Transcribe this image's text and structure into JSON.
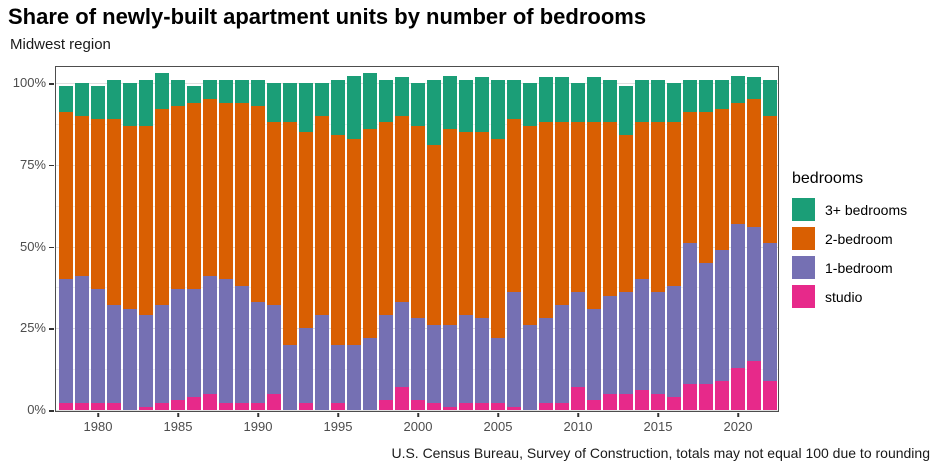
{
  "title": "Share of newly-built apartment units by number of bedrooms",
  "subtitle": "Midwest region",
  "caption": "U.S. Census Bureau, Survey of Construction, totals may not equal 100 due to rounding",
  "legend": {
    "title": "bedrooms",
    "items": [
      {
        "label": "3+ bedrooms",
        "color": "#1b9e77"
      },
      {
        "label": "2-bedroom",
        "color": "#d95f02"
      },
      {
        "label": "1-bedroom",
        "color": "#7570b3"
      },
      {
        "label": "studio",
        "color": "#e7298a"
      }
    ]
  },
  "chart_data": {
    "type": "bar",
    "stacked": true,
    "title": "Share of newly-built apartment units by number of bedrooms",
    "subtitle": "Midwest region",
    "xlabel": "",
    "ylabel": "",
    "ylim": [
      0,
      100
    ],
    "grid": true,
    "legend_position": "right",
    "note": "stacked shares in percent; totals may not equal 100 due to rounding",
    "x": [
      1978,
      1979,
      1980,
      1981,
      1982,
      1983,
      1984,
      1985,
      1986,
      1987,
      1988,
      1989,
      1990,
      1991,
      1992,
      1993,
      1994,
      1995,
      1996,
      1997,
      1998,
      1999,
      2000,
      2001,
      2002,
      2003,
      2004,
      2005,
      2006,
      2007,
      2008,
      2009,
      2010,
      2011,
      2012,
      2013,
      2014,
      2015,
      2016,
      2017,
      2018,
      2019,
      2020,
      2021,
      2022
    ],
    "x_ticks": [
      1980,
      1985,
      1990,
      1995,
      2000,
      2005,
      2010,
      2015,
      2020
    ],
    "y_ticks": [
      {
        "value": 0,
        "label": "0%"
      },
      {
        "value": 25,
        "label": "25%"
      },
      {
        "value": 50,
        "label": "50%"
      },
      {
        "value": 75,
        "label": "75%"
      },
      {
        "value": 100,
        "label": "100%"
      }
    ],
    "y_minor_ticks": [
      12.5,
      37.5,
      62.5,
      87.5
    ],
    "series": [
      {
        "name": "studio",
        "color": "#e7298a",
        "values": [
          2,
          2,
          2,
          2,
          0,
          1,
          2,
          3,
          4,
          5,
          2,
          2,
          2,
          5,
          0,
          2,
          0,
          2,
          0,
          0,
          3,
          7,
          3,
          2,
          1,
          2,
          2,
          2,
          1,
          0,
          2,
          2,
          7,
          3,
          5,
          5,
          6,
          5,
          4,
          8,
          8,
          9,
          13,
          15,
          9
        ]
      },
      {
        "name": "1-bedroom",
        "color": "#7570b3",
        "values": [
          38,
          39,
          35,
          30,
          31,
          28,
          30,
          34,
          33,
          36,
          38,
          36,
          31,
          27,
          20,
          23,
          29,
          18,
          20,
          22,
          26,
          26,
          25,
          24,
          25,
          27,
          26,
          20,
          35,
          26,
          26,
          30,
          29,
          28,
          30,
          31,
          34,
          31,
          34,
          43,
          37,
          40,
          44,
          41,
          42
        ]
      },
      {
        "name": "2-bedroom",
        "color": "#d95f02",
        "values": [
          51,
          49,
          52,
          57,
          56,
          58,
          60,
          56,
          57,
          54,
          54,
          56,
          60,
          56,
          68,
          60,
          61,
          64,
          63,
          64,
          59,
          57,
          59,
          55,
          60,
          56,
          57,
          61,
          53,
          61,
          60,
          56,
          52,
          57,
          53,
          48,
          48,
          52,
          50,
          40,
          46,
          43,
          37,
          39,
          39
        ]
      },
      {
        "name": "3+ bedrooms",
        "color": "#1b9e77",
        "values": [
          8,
          10,
          10,
          12,
          13,
          14,
          11,
          8,
          5,
          6,
          7,
          7,
          8,
          12,
          12,
          15,
          10,
          17,
          19,
          17,
          13,
          12,
          13,
          20,
          16,
          16,
          17,
          18,
          12,
          13,
          14,
          14,
          12,
          14,
          13,
          15,
          13,
          13,
          12,
          10,
          10,
          9,
          8,
          7,
          11
        ]
      }
    ]
  }
}
